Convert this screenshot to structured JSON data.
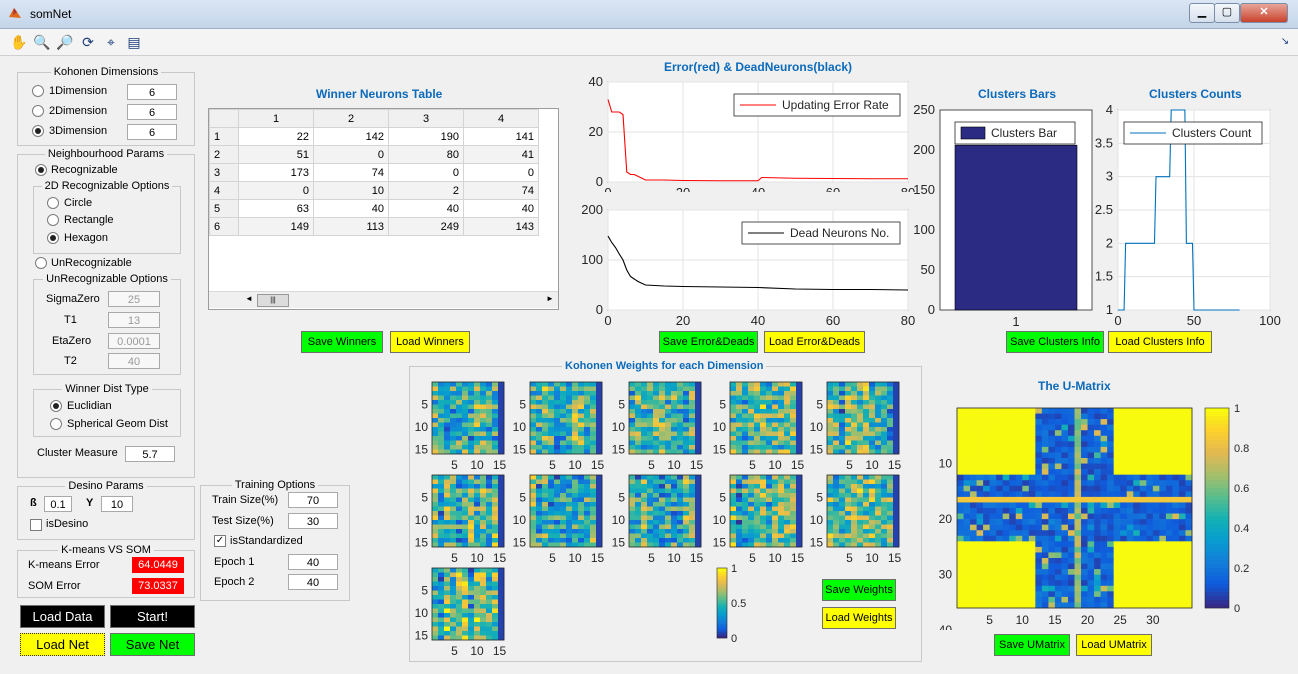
{
  "window": {
    "title": "somNet"
  },
  "kohonen_dims": {
    "legend": "Kohonen Dimensions",
    "items": [
      {
        "label": "1Dimension",
        "value": "6",
        "selected": false
      },
      {
        "label": "2Dimension",
        "value": "6",
        "selected": false
      },
      {
        "label": "3Dimension",
        "value": "6",
        "selected": true
      }
    ]
  },
  "neigh": {
    "legend": "Neighbourhood Params",
    "recognizable": "Recognizable",
    "options_legend": "2D Recognizable Options",
    "circle": "Circle",
    "rectangle": "Rectangle",
    "hexagon": "Hexagon",
    "unrecognizable": "UnRecognizable",
    "unrec_legend": "UnRecognizable Options",
    "sigma_label": "SigmaZero",
    "sigma": "25",
    "t1_label": "T1",
    "t1": "13",
    "eta_label": "EtaZero",
    "eta": "0.0001",
    "t2_label": "T2",
    "t2": "40"
  },
  "winner_dist": {
    "legend": "Winner Dist Type",
    "euclidian": "Euclidian",
    "spherical": "Spherical Geom Dist"
  },
  "cluster_measure": {
    "label": "Cluster Measure",
    "value": "5.7"
  },
  "desino": {
    "legend": "Desino Params",
    "beta_label": "ß",
    "beta": "0.1",
    "gamma_label": "Y",
    "gamma": "10",
    "isdesino": "isDesino"
  },
  "kmeans": {
    "legend": "K-means VS SOM",
    "kmeans_label": "K-means Error",
    "kmeans_value": "64.0449",
    "som_label": "SOM Error",
    "som_value": "73.0337"
  },
  "buttons": {
    "load_data": "Load Data",
    "start": "Start!",
    "load_net": "Load Net",
    "save_net": "Save Net",
    "save_winners": "Save Winners",
    "load_winners": "Load Winners",
    "save_err": "Save Error&Deads",
    "load_err": "Load Error&Deads",
    "save_clusters": "Save Clusters Info",
    "load_clusters": "Load Clusters Info",
    "save_weights": "Save Weights",
    "load_weights": "Load Weights",
    "save_umatrix": "Save UMatrix",
    "load_umatrix": "Load UMatrix"
  },
  "training": {
    "legend": "Training Options",
    "train_label": "Train Size(%)",
    "train": "70",
    "test_label": "Test Size(%)",
    "test": "30",
    "standardized": "isStandardized",
    "epoch1_label": "Epoch 1",
    "epoch1": "40",
    "epoch2_label": "Epoch 2",
    "epoch2": "40"
  },
  "winners_table": {
    "title": "Winner Neurons Table",
    "columns": [
      "1",
      "2",
      "3",
      "4"
    ],
    "rows": [
      [
        "1",
        "22",
        "142",
        "190",
        "141"
      ],
      [
        "2",
        "51",
        "0",
        "80",
        "41"
      ],
      [
        "3",
        "173",
        "74",
        "0",
        "0"
      ],
      [
        "4",
        "0",
        "10",
        "2",
        "74"
      ],
      [
        "5",
        "63",
        "40",
        "40",
        "40"
      ],
      [
        "6",
        "149",
        "113",
        "249",
        "143"
      ]
    ]
  },
  "titles": {
    "error_dead": "Error(red) & DeadNeurons(black)",
    "clusters_bars": "Clusters Bars",
    "clusters_counts": "Clusters Counts",
    "weights": "Kohonen Weights for each Dimension",
    "umatrix": "The U-Matrix"
  },
  "chart_data": [
    {
      "type": "line",
      "name": "error",
      "series": [
        {
          "name": "Updating Error Rate",
          "color": "#ff0000",
          "x": [
            0,
            1,
            2,
            3,
            4,
            5,
            6,
            7,
            10,
            15,
            20,
            30,
            40,
            41,
            50,
            60,
            70,
            80
          ],
          "y": [
            33,
            28,
            28,
            28,
            27,
            4,
            3,
            3,
            0.8,
            0.8,
            0.6,
            0.5,
            0.5,
            1.8,
            1.5,
            1.4,
            1.3,
            1.3
          ]
        }
      ],
      "xlim": [
        0,
        80
      ],
      "ylim": [
        0,
        40
      ],
      "xticks": [
        0,
        20,
        40,
        60,
        80
      ],
      "yticks": [
        0,
        20,
        40
      ],
      "legend": "top-right"
    },
    {
      "type": "line",
      "name": "dead",
      "series": [
        {
          "name": "Dead Neurons No.",
          "color": "#000000",
          "x": [
            0,
            1,
            2,
            3,
            4,
            5,
            6,
            8,
            10,
            15,
            20,
            30,
            40,
            50,
            60,
            70,
            80
          ],
          "y": [
            148,
            135,
            125,
            112,
            100,
            80,
            67,
            57,
            50,
            48,
            47,
            46,
            45,
            42,
            41,
            41,
            40
          ]
        }
      ],
      "xlim": [
        0,
        80
      ],
      "ylim": [
        0,
        200
      ],
      "xticks": [
        0,
        20,
        40,
        60,
        80
      ],
      "yticks": [
        0,
        100,
        200
      ],
      "legend": "top-right"
    },
    {
      "type": "bar",
      "name": "clusters_bars",
      "categories": [
        "1"
      ],
      "series": [
        {
          "name": "Clusters Bar",
          "values": [
            206
          ],
          "color": "#2b2b83"
        }
      ],
      "ylim": [
        0,
        250
      ],
      "yticks": [
        0,
        50,
        100,
        150,
        200,
        250
      ],
      "legend": "top-left"
    },
    {
      "type": "line",
      "name": "clusters_counts",
      "series": [
        {
          "name": "Clusters Count",
          "color": "#0072bd",
          "x": [
            0,
            4,
            5,
            9,
            10,
            14,
            15,
            19,
            20,
            24,
            25,
            29,
            30,
            34,
            35,
            39,
            40,
            44,
            45,
            49,
            50,
            54,
            55,
            80
          ],
          "y": [
            1,
            1,
            2,
            2,
            2,
            2,
            2,
            2,
            2,
            2,
            3,
            3,
            3,
            3,
            4,
            4,
            4,
            4,
            2,
            2,
            1,
            1,
            1,
            1
          ]
        }
      ],
      "xlim": [
        0,
        100
      ],
      "ylim": [
        1,
        4
      ],
      "xticks": [
        0,
        50,
        100
      ],
      "yticks": [
        1,
        1.5,
        2,
        2.5,
        3,
        3.5,
        4
      ],
      "legend": "top-right"
    },
    {
      "type": "heatmap",
      "name": "weights",
      "count": 11,
      "xticks": [
        5,
        10,
        15
      ],
      "yticks": [
        5,
        10,
        15
      ],
      "colorbar_ticks": [
        0,
        0.5,
        1
      ]
    },
    {
      "type": "heatmap",
      "name": "umatrix",
      "xticks": [
        5,
        10,
        15,
        20,
        25,
        30
      ],
      "yticks": [
        10,
        20,
        30,
        40
      ],
      "colorbar_ticks": [
        0,
        0.2,
        0.4,
        0.6,
        0.8,
        1
      ]
    }
  ]
}
